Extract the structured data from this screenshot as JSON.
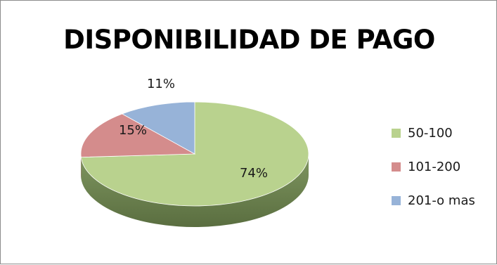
{
  "chart_data": {
    "type": "pie",
    "title": "DISPONIBILIDAD DE PAGO",
    "categories": [
      "50-100",
      "101-200",
      "201-o mas"
    ],
    "values": [
      74,
      15,
      11
    ],
    "data_labels": [
      "74%",
      "15%",
      "11%"
    ],
    "colors": [
      "#b9d28e",
      "#d48c8c",
      "#97b3d8"
    ],
    "style": "3d",
    "legend_position": "right"
  }
}
